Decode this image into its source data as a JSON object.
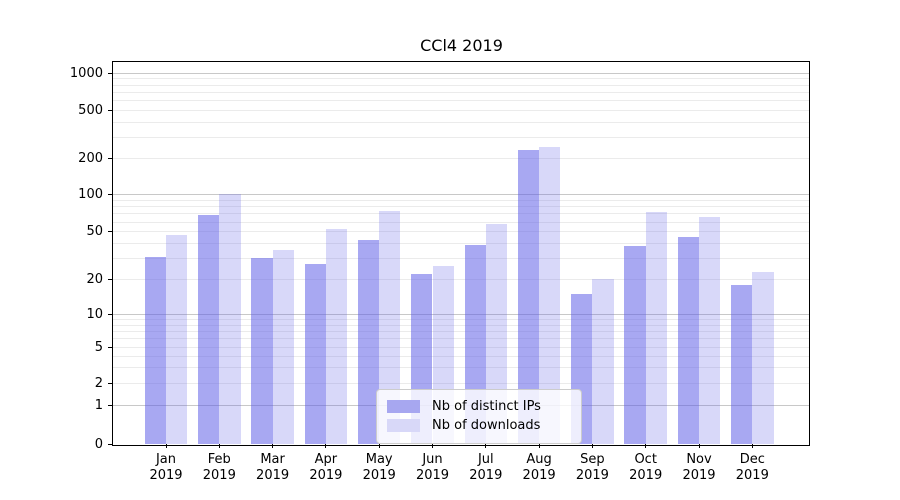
{
  "title": "CCl4 2019",
  "legend": {
    "items": [
      {
        "label": "Nb of distinct IPs",
        "swatch_color": "#a7a7f0"
      },
      {
        "label": "Nb of downloads",
        "swatch_color": "#d8d8f8"
      }
    ]
  },
  "colors": {
    "bar_distinct_ips_fill": "rgba(90,90,230,0.53)",
    "bar_downloads_fill": "rgba(90,90,230,0.24)",
    "major_grid": "#c8c8c8",
    "minor_grid": "#ebebeb",
    "axis": "#000000"
  },
  "chart_data": {
    "type": "bar",
    "title": "CCl4 2019",
    "xlabel": "",
    "ylabel": "",
    "year": "2019",
    "categories": [
      "Jan",
      "Feb",
      "Mar",
      "Apr",
      "May",
      "Jun",
      "Jul",
      "Aug",
      "Sep",
      "Oct",
      "Nov",
      "Dec"
    ],
    "series": [
      {
        "name": "Nb of distinct IPs",
        "fill": "rgba(90,90,230,0.53)",
        "values": [
          31,
          68,
          30,
          27,
          43,
          22,
          39,
          235,
          15,
          38,
          45,
          18
        ]
      },
      {
        "name": "Nb of downloads",
        "fill": "rgba(90,90,230,0.24)",
        "values": [
          47,
          102,
          35,
          53,
          73,
          26,
          58,
          248,
          20,
          72,
          66,
          23
        ]
      }
    ],
    "yscale": "symlog",
    "yticks": [
      0,
      1,
      2,
      5,
      10,
      20,
      50,
      100,
      200,
      500,
      1000
    ],
    "major_gridlines": [
      1,
      10,
      100,
      1000
    ],
    "ylim": [
      0,
      1200
    ],
    "grid": true,
    "legend_position": "lower center"
  }
}
